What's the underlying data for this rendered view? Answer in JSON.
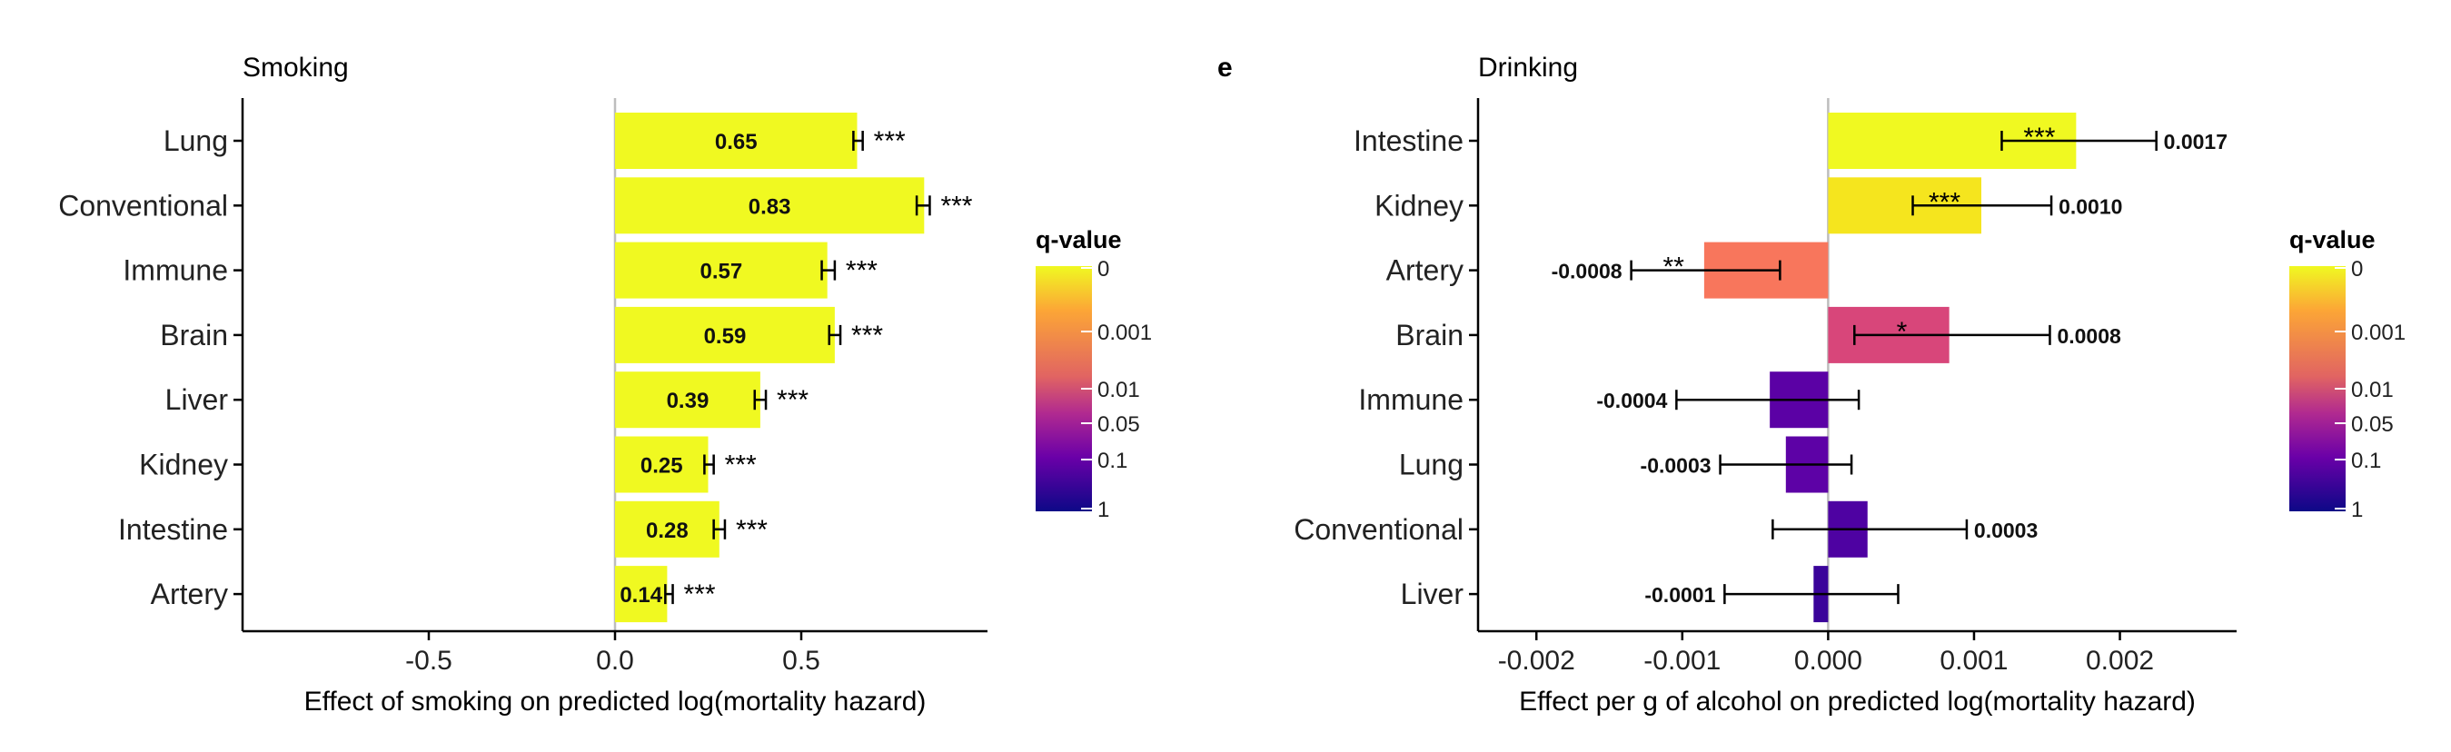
{
  "panel_letter": "e",
  "colorbar": {
    "title": "q-value",
    "tick_labels": [
      "0",
      "0.001",
      "0.01",
      "0.05",
      "0.1",
      "1"
    ],
    "tick_values": [
      0,
      0.001,
      0.01,
      0.05,
      0.1,
      1
    ],
    "colors": [
      "#f0f921",
      "#fca636",
      "#e16462",
      "#b12a90",
      "#6a00a8",
      "#0d0887"
    ]
  },
  "chart_data": [
    {
      "type": "bar",
      "orientation": "horizontal",
      "title": "Smoking",
      "xlabel": "Effect of smoking on predicted log(mortality hazard)",
      "ylabel": "",
      "xlim": [
        -1.0,
        1.0
      ],
      "xticks": [
        -0.5,
        0.0,
        0.5
      ],
      "xtick_labels": [
        "-0.5",
        "0.0",
        "0.5"
      ],
      "categories": [
        "Lung",
        "Conventional",
        "Immune",
        "Brain",
        "Liver",
        "Kidney",
        "Intestine",
        "Artery"
      ],
      "values": [
        0.65,
        0.83,
        0.57,
        0.59,
        0.39,
        0.25,
        0.28,
        0.14
      ],
      "value_labels": [
        "0.65",
        "0.83",
        "0.57",
        "0.59",
        "0.39",
        "0.25",
        "0.28",
        "0.14"
      ],
      "error_low": [
        0.64,
        0.81,
        0.555,
        0.575,
        0.375,
        0.24,
        0.265,
        0.135
      ],
      "error_high": [
        0.665,
        0.845,
        0.59,
        0.605,
        0.405,
        0.265,
        0.295,
        0.155
      ],
      "significance": [
        "***",
        "***",
        "***",
        "***",
        "***",
        "***",
        "***",
        "***"
      ],
      "bar_colors": [
        "#f0f921",
        "#f0f921",
        "#f0f921",
        "#f0f921",
        "#f0f921",
        "#f0f921",
        "#f0f921",
        "#f0f921"
      ],
      "legend": "q-value"
    },
    {
      "type": "bar",
      "orientation": "horizontal",
      "title": "Drinking",
      "xlabel": "Effect per g of alcohol on predicted log(mortality hazard)",
      "ylabel": "",
      "xlim": [
        -0.0024,
        0.0028
      ],
      "xticks": [
        -0.002,
        -0.001,
        0.0,
        0.001,
        0.002
      ],
      "xtick_labels": [
        "-0.002",
        "-0.001",
        "0.000",
        "0.001",
        "0.002"
      ],
      "categories": [
        "Intestine",
        "Kidney",
        "Artery",
        "Brain",
        "Immune",
        "Lung",
        "Conventional",
        "Liver"
      ],
      "values": [
        0.0017,
        0.00105,
        -0.00085,
        0.00083,
        -0.0004,
        -0.00029,
        0.00027,
        -0.0001
      ],
      "value_labels": [
        "0.0017",
        "0.0010",
        "-0.0008",
        "0.0008",
        "-0.0004",
        "-0.0003",
        "0.0003",
        "-0.0001"
      ],
      "error_low": [
        0.00119,
        0.00058,
        -0.00135,
        0.00018,
        -0.00104,
        -0.00074,
        -0.00038,
        -0.00071
      ],
      "error_high": [
        0.00225,
        0.00153,
        -0.00033,
        0.00152,
        0.00021,
        0.00016,
        0.00095,
        0.00048
      ],
      "significance": [
        "***",
        "***",
        "**",
        "*",
        "",
        "",
        "",
        ""
      ],
      "bar_colors": [
        "#f0f921",
        "#f5e51e",
        "#f8765c",
        "#d8467a",
        "#5b01a5",
        "#5d02a6",
        "#4e02a2",
        "#3a049a"
      ],
      "legend": "q-value"
    }
  ]
}
